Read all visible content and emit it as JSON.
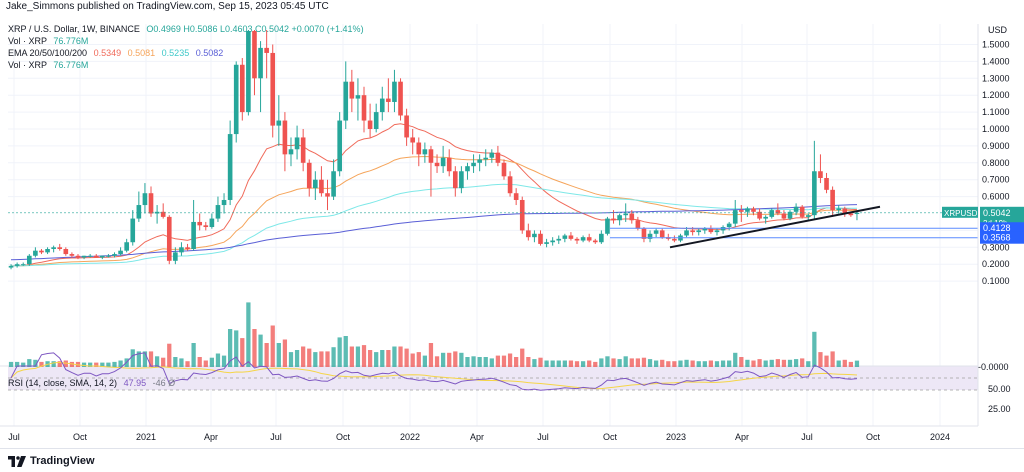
{
  "header": {
    "publisher_line": "Jake_Simmons published on TradingView.com, Sep 15, 2023 05:45 UTC"
  },
  "legend": {
    "symbol_line": "XRP / U.S. Dollar, 1W, BINANCE",
    "ohlc": "O0.4969  H0.5086  L0.4603  C0.5042  +0.0070 (+1.41%)",
    "vol_label": "Vol · XRP",
    "vol_value": "76.776M",
    "ema_label": "EMA 20/50/100/200",
    "ema_values": [
      "0.5349",
      "0.5081",
      "0.5235",
      "0.5082"
    ],
    "vol2_label": "Vol · XRP",
    "vol2_value": "76.776M"
  },
  "rsi_legend": {
    "label": "RSI (14, close, SMA, 14, 2)",
    "value": "47.95",
    "extra": "-46  Ø"
  },
  "footer": {
    "brand": "TradingView"
  },
  "colors": {
    "up": "#26a69a",
    "down": "#ef5350",
    "ema20": "#f06a5a",
    "ema50": "#f5a45a",
    "ema100": "#7ee8e8",
    "ema200": "#5a5fd6",
    "trendline": "#131722",
    "rsi": "#7e57c2",
    "rsi_ma": "#f5d547",
    "rsi_band": "#ede7f6",
    "price_tag": "#26a69a",
    "level_tag": "#2962ff"
  },
  "chart_data": {
    "type": "candlestick",
    "title": "XRP / U.S. Dollar, 1W, BINANCE",
    "yaxis": {
      "unit": "USD",
      "ticks": [
        1.5,
        1.4,
        1.3,
        1.2,
        1.1,
        1.0,
        0.9,
        0.8,
        0.7,
        0.6,
        0.4,
        0.3,
        0.2,
        0.1
      ],
      "tick_labels": [
        "1.5000",
        "1.4000",
        "1.3000",
        "1.2000",
        "1.1000",
        "1.0000",
        "0.9000",
        "0.8000",
        "0.7000",
        "0.6000",
        "0.4000",
        "0.3000",
        "0.2000",
        "0.1000"
      ],
      "zero_label": "-0.0000"
    },
    "xaxis": {
      "tick_labels": [
        "Jul",
        "Oct",
        "2021",
        "Apr",
        "Jul",
        "Oct",
        "2022",
        "Apr",
        "Jul",
        "Oct",
        "2023",
        "Apr",
        "Jul",
        "Oct",
        "2024"
      ],
      "tick_dates": [
        "2020-07",
        "2020-10",
        "2021-01",
        "2021-04",
        "2021-07",
        "2021-10",
        "2022-01",
        "2022-04",
        "2022-07",
        "2022-10",
        "2023-01",
        "2023-04",
        "2023-07",
        "2023-10",
        "2024-01"
      ]
    },
    "price_tags": [
      {
        "label": "XRPUSD",
        "value": "0.5042",
        "sub": "2d 19h",
        "kind": "last"
      },
      {
        "label": "",
        "value": "0.4128",
        "kind": "level"
      },
      {
        "label": "",
        "value": "0.3568",
        "kind": "level"
      }
    ],
    "horizontal_levels": [
      0.4128,
      0.3568
    ],
    "trendline": {
      "from": [
        "2022-12-26",
        0.3
      ],
      "to": [
        "2023-10-02",
        0.54
      ]
    },
    "rsi": {
      "levels": [
        70,
        50,
        30
      ],
      "axis_labels": [
        "50.00",
        "25.00"
      ]
    },
    "candles_weekly": [
      [
        0.18,
        0.2,
        0.17,
        0.19
      ],
      [
        0.19,
        0.21,
        0.18,
        0.2
      ],
      [
        0.2,
        0.21,
        0.19,
        0.2
      ],
      [
        0.2,
        0.26,
        0.19,
        0.25
      ],
      [
        0.25,
        0.3,
        0.24,
        0.28
      ],
      [
        0.28,
        0.29,
        0.26,
        0.27
      ],
      [
        0.27,
        0.3,
        0.26,
        0.29
      ],
      [
        0.29,
        0.31,
        0.27,
        0.3
      ],
      [
        0.3,
        0.32,
        0.28,
        0.29
      ],
      [
        0.29,
        0.3,
        0.25,
        0.26
      ],
      [
        0.26,
        0.27,
        0.24,
        0.25
      ],
      [
        0.25,
        0.26,
        0.23,
        0.24
      ],
      [
        0.24,
        0.25,
        0.23,
        0.25
      ],
      [
        0.25,
        0.26,
        0.24,
        0.25
      ],
      [
        0.25,
        0.26,
        0.24,
        0.24
      ],
      [
        0.24,
        0.25,
        0.23,
        0.25
      ],
      [
        0.25,
        0.26,
        0.24,
        0.25
      ],
      [
        0.25,
        0.27,
        0.24,
        0.26
      ],
      [
        0.26,
        0.3,
        0.25,
        0.28
      ],
      [
        0.28,
        0.35,
        0.27,
        0.33
      ],
      [
        0.33,
        0.52,
        0.31,
        0.47
      ],
      [
        0.47,
        0.63,
        0.45,
        0.55
      ],
      [
        0.55,
        0.68,
        0.5,
        0.62
      ],
      [
        0.62,
        0.66,
        0.48,
        0.5
      ],
      [
        0.5,
        0.55,
        0.44,
        0.51
      ],
      [
        0.51,
        0.56,
        0.47,
        0.48
      ],
      [
        0.48,
        0.49,
        0.2,
        0.22
      ],
      [
        0.22,
        0.3,
        0.2,
        0.27
      ],
      [
        0.27,
        0.33,
        0.25,
        0.3
      ],
      [
        0.3,
        0.32,
        0.28,
        0.29
      ],
      [
        0.29,
        0.58,
        0.28,
        0.45
      ],
      [
        0.45,
        0.5,
        0.4,
        0.43
      ],
      [
        0.43,
        0.45,
        0.4,
        0.42
      ],
      [
        0.42,
        0.5,
        0.41,
        0.47
      ],
      [
        0.47,
        0.6,
        0.45,
        0.55
      ],
      [
        0.55,
        0.62,
        0.5,
        0.58
      ],
      [
        0.58,
        1.05,
        0.55,
        0.97
      ],
      [
        0.97,
        1.4,
        0.92,
        1.38
      ],
      [
        1.38,
        1.42,
        1.05,
        1.1
      ],
      [
        1.1,
        1.96,
        1.08,
        1.58
      ],
      [
        1.58,
        1.7,
        1.2,
        1.3
      ],
      [
        1.3,
        1.52,
        1.1,
        1.48
      ],
      [
        1.48,
        1.6,
        1.3,
        1.45
      ],
      [
        1.45,
        1.5,
        0.95,
        1.02
      ],
      [
        1.02,
        1.2,
        0.9,
        1.05
      ],
      [
        1.05,
        1.1,
        0.75,
        0.85
      ],
      [
        0.85,
        0.95,
        0.78,
        0.88
      ],
      [
        0.88,
        1.02,
        0.82,
        0.95
      ],
      [
        0.95,
        1.0,
        0.75,
        0.8
      ],
      [
        0.8,
        0.82,
        0.6,
        0.65
      ],
      [
        0.65,
        0.75,
        0.58,
        0.7
      ],
      [
        0.7,
        0.78,
        0.6,
        0.62
      ],
      [
        0.62,
        0.7,
        0.52,
        0.6
      ],
      [
        0.6,
        0.82,
        0.58,
        0.75
      ],
      [
        0.75,
        1.1,
        0.72,
        1.05
      ],
      [
        1.05,
        1.4,
        1.0,
        1.28
      ],
      [
        1.28,
        1.35,
        1.1,
        1.18
      ],
      [
        1.18,
        1.3,
        1.05,
        1.2
      ],
      [
        1.2,
        1.25,
        0.98,
        1.05
      ],
      [
        1.05,
        1.15,
        0.95,
        1.0
      ],
      [
        1.0,
        1.15,
        0.98,
        1.1
      ],
      [
        1.1,
        1.25,
        1.05,
        1.18
      ],
      [
        1.18,
        1.3,
        1.1,
        1.16
      ],
      [
        1.16,
        1.35,
        1.1,
        1.28
      ],
      [
        1.28,
        1.3,
        1.05,
        1.08
      ],
      [
        1.08,
        1.12,
        0.9,
        0.95
      ],
      [
        0.95,
        1.0,
        0.85,
        0.92
      ],
      [
        0.92,
        0.95,
        0.78,
        0.85
      ],
      [
        0.85,
        0.92,
        0.8,
        0.88
      ],
      [
        0.88,
        0.9,
        0.6,
        0.8
      ],
      [
        0.8,
        0.85,
        0.74,
        0.78
      ],
      [
        0.78,
        0.9,
        0.74,
        0.83
      ],
      [
        0.83,
        0.88,
        0.72,
        0.75
      ],
      [
        0.75,
        0.78,
        0.6,
        0.65
      ],
      [
        0.65,
        0.78,
        0.62,
        0.75
      ],
      [
        0.75,
        0.8,
        0.7,
        0.78
      ],
      [
        0.78,
        0.85,
        0.74,
        0.8
      ],
      [
        0.8,
        0.85,
        0.75,
        0.82
      ],
      [
        0.82,
        0.88,
        0.78,
        0.83
      ],
      [
        0.83,
        0.88,
        0.8,
        0.86
      ],
      [
        0.86,
        0.9,
        0.78,
        0.8
      ],
      [
        0.8,
        0.82,
        0.7,
        0.72
      ],
      [
        0.72,
        0.75,
        0.6,
        0.62
      ],
      [
        0.62,
        0.65,
        0.55,
        0.58
      ],
      [
        0.58,
        0.6,
        0.38,
        0.4
      ],
      [
        0.4,
        0.44,
        0.34,
        0.36
      ],
      [
        0.36,
        0.4,
        0.33,
        0.38
      ],
      [
        0.38,
        0.4,
        0.31,
        0.32
      ],
      [
        0.32,
        0.35,
        0.3,
        0.33
      ],
      [
        0.33,
        0.36,
        0.31,
        0.34
      ],
      [
        0.34,
        0.37,
        0.32,
        0.35
      ],
      [
        0.35,
        0.38,
        0.33,
        0.37
      ],
      [
        0.37,
        0.39,
        0.34,
        0.35
      ],
      [
        0.35,
        0.36,
        0.32,
        0.34
      ],
      [
        0.34,
        0.37,
        0.33,
        0.36
      ],
      [
        0.36,
        0.38,
        0.33,
        0.34
      ],
      [
        0.34,
        0.35,
        0.32,
        0.33
      ],
      [
        0.33,
        0.4,
        0.32,
        0.38
      ],
      [
        0.38,
        0.48,
        0.37,
        0.47
      ],
      [
        0.47,
        0.52,
        0.44,
        0.46
      ],
      [
        0.46,
        0.5,
        0.43,
        0.49
      ],
      [
        0.49,
        0.56,
        0.45,
        0.5
      ],
      [
        0.5,
        0.52,
        0.44,
        0.46
      ],
      [
        0.46,
        0.48,
        0.4,
        0.41
      ],
      [
        0.41,
        0.42,
        0.33,
        0.35
      ],
      [
        0.35,
        0.4,
        0.33,
        0.38
      ],
      [
        0.38,
        0.41,
        0.36,
        0.4
      ],
      [
        0.4,
        0.41,
        0.35,
        0.36
      ],
      [
        0.36,
        0.38,
        0.34,
        0.35
      ],
      [
        0.35,
        0.37,
        0.33,
        0.34
      ],
      [
        0.34,
        0.38,
        0.33,
        0.37
      ],
      [
        0.37,
        0.42,
        0.36,
        0.4
      ],
      [
        0.4,
        0.42,
        0.37,
        0.39
      ],
      [
        0.39,
        0.41,
        0.37,
        0.4
      ],
      [
        0.4,
        0.42,
        0.38,
        0.41
      ],
      [
        0.41,
        0.43,
        0.38,
        0.39
      ],
      [
        0.39,
        0.41,
        0.37,
        0.4
      ],
      [
        0.4,
        0.43,
        0.38,
        0.42
      ],
      [
        0.42,
        0.45,
        0.4,
        0.44
      ],
      [
        0.44,
        0.58,
        0.42,
        0.52
      ],
      [
        0.52,
        0.55,
        0.45,
        0.51
      ],
      [
        0.51,
        0.54,
        0.48,
        0.53
      ],
      [
        0.53,
        0.54,
        0.49,
        0.51
      ],
      [
        0.51,
        0.53,
        0.46,
        0.47
      ],
      [
        0.47,
        0.49,
        0.44,
        0.48
      ],
      [
        0.48,
        0.53,
        0.47,
        0.52
      ],
      [
        0.52,
        0.56,
        0.49,
        0.5
      ],
      [
        0.5,
        0.52,
        0.46,
        0.47
      ],
      [
        0.47,
        0.52,
        0.46,
        0.51
      ],
      [
        0.51,
        0.56,
        0.49,
        0.54
      ],
      [
        0.54,
        0.55,
        0.47,
        0.48
      ],
      [
        0.48,
        0.5,
        0.46,
        0.49
      ],
      [
        0.49,
        0.93,
        0.47,
        0.75
      ],
      [
        0.75,
        0.85,
        0.68,
        0.71
      ],
      [
        0.71,
        0.74,
        0.62,
        0.64
      ],
      [
        0.64,
        0.66,
        0.48,
        0.52
      ],
      [
        0.52,
        0.55,
        0.5,
        0.53
      ],
      [
        0.53,
        0.54,
        0.48,
        0.5
      ],
      [
        0.5,
        0.51,
        0.48,
        0.49
      ],
      [
        0.4969,
        0.5086,
        0.4603,
        0.5042
      ]
    ]
  }
}
